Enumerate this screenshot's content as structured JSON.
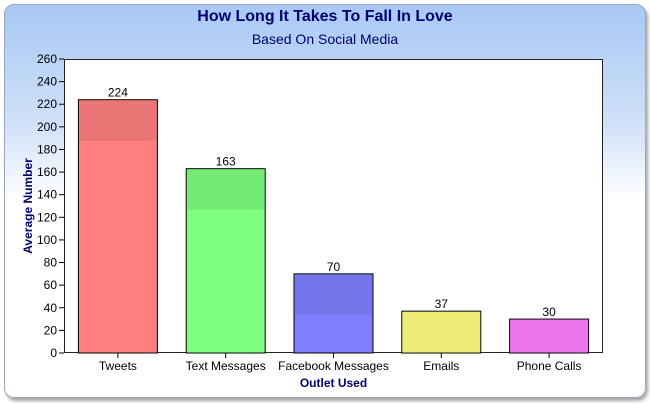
{
  "chart_data": {
    "type": "bar",
    "title": "How Long It Takes To Fall In Love",
    "subtitle": "Based On Social Media",
    "xlabel": "Outlet Used",
    "ylabel": "Average Number",
    "categories": [
      "Tweets",
      "Text Messages",
      "Facebook Messages",
      "Emails",
      "Phone Calls"
    ],
    "values": [
      224,
      163,
      70,
      37,
      30
    ],
    "ylim": [
      0,
      260
    ],
    "yticks": [
      0,
      20,
      40,
      60,
      80,
      100,
      120,
      140,
      160,
      180,
      200,
      220,
      240,
      260
    ],
    "bar_colors": [
      "#ff7f7f",
      "#7fff7f",
      "#7f7fff",
      "#ffff7f",
      "#ff7fff"
    ],
    "grid": false,
    "data_labels": true
  },
  "colors": {
    "title": "#00006e",
    "panel_top": "#a8c8f4"
  }
}
